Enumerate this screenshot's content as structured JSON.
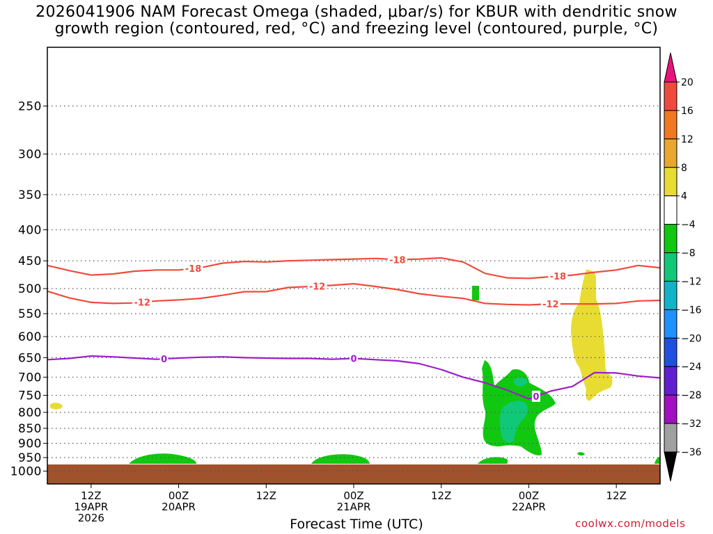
{
  "title_line1": "2026041906 NAM Forecast Omega (shaded, μbar/s) for KBUR with dendritic snow",
  "title_line2": "growth region (contoured, red, °C) and freezing level (contoured, purple, °C)",
  "credit": "coolwx.com/models",
  "chart_data": {
    "type": "area",
    "model": "NAM",
    "station": "KBUR",
    "init": "2026041906",
    "xlabel": "Forecast Time (UTC)",
    "ylabel": "",
    "y_axis": "pressure (hPa), inverted",
    "ylim": [
      1050,
      200
    ],
    "x_hours_range": [
      0,
      84
    ],
    "grid": true,
    "yticks": [
      250,
      300,
      350,
      400,
      450,
      500,
      550,
      600,
      650,
      700,
      750,
      800,
      850,
      900,
      950,
      1000
    ],
    "xticks": [
      {
        "hour": 6,
        "labels": [
          "12Z",
          "19APR",
          "2026"
        ]
      },
      {
        "hour": 18,
        "labels": [
          "00Z",
          "20APR"
        ]
      },
      {
        "hour": 30,
        "labels": [
          "12Z"
        ]
      },
      {
        "hour": 42,
        "labels": [
          "00Z",
          "21APR"
        ]
      },
      {
        "hour": 54,
        "labels": [
          "12Z"
        ]
      },
      {
        "hour": 66,
        "labels": [
          "00Z",
          "22APR"
        ]
      },
      {
        "hour": 78,
        "labels": [
          "12Z"
        ]
      }
    ],
    "colorbar": {
      "labels": [
        "20",
        "16",
        "12",
        "8",
        "4",
        "−4",
        "−8",
        "−12",
        "−16",
        "−20",
        "−24",
        "−28",
        "−32",
        "−36"
      ],
      "bins": [
        {
          "range": "above 20",
          "color": "#e8147c"
        },
        {
          "range": "16 to 20",
          "color": "#f04a3c"
        },
        {
          "range": "12 to 16",
          "color": "#f07820"
        },
        {
          "range": "8 to 12",
          "color": "#e8a830"
        },
        {
          "range": "4 to 8",
          "color": "#e8dc32"
        },
        {
          "range": "-4 to 4",
          "color": "#ffffff"
        },
        {
          "range": "-8 to -4",
          "color": "#10c810"
        },
        {
          "range": "-12 to -8",
          "color": "#10c878"
        },
        {
          "range": "-16 to -12",
          "color": "#10b4c8"
        },
        {
          "range": "-20 to -16",
          "color": "#1e90ff"
        },
        {
          "range": "-24 to -20",
          "color": "#2050e0"
        },
        {
          "range": "-28 to -24",
          "color": "#6020d0"
        },
        {
          "range": "-32 to -28",
          "color": "#a010c0"
        },
        {
          "range": "-36 to -32",
          "color": "#a0a0a0"
        },
        {
          "range": "below -36",
          "color": "#000000"
        }
      ]
    },
    "series": [
      {
        "name": "-18",
        "color": "#f04a3c",
        "x": [
          0,
          3,
          6,
          9,
          12,
          15,
          18,
          21,
          24,
          27,
          30,
          33,
          36,
          39,
          42,
          45,
          48,
          51,
          54,
          57,
          60,
          63,
          66,
          69,
          72,
          75,
          78,
          81,
          84
        ],
        "y": [
          458,
          467,
          475,
          473,
          468,
          466,
          466,
          462,
          454,
          451,
          452,
          450,
          449,
          448,
          447,
          446,
          448,
          447,
          445,
          452,
          472,
          480,
          481,
          478,
          475,
          470,
          466,
          458,
          462
        ],
        "labels": [
          {
            "x": 20,
            "text": "-18"
          },
          {
            "x": 48,
            "text": "-18"
          },
          {
            "x": 70,
            "text": "-18"
          }
        ]
      },
      {
        "name": "-12",
        "color": "#f04a3c",
        "x": [
          0,
          3,
          6,
          9,
          12,
          15,
          18,
          21,
          24,
          27,
          30,
          33,
          36,
          39,
          42,
          45,
          48,
          51,
          54,
          57,
          60,
          63,
          66,
          69,
          72,
          75,
          78,
          81,
          84
        ],
        "y": [
          505,
          518,
          527,
          529,
          528,
          524,
          522,
          519,
          513,
          506,
          506,
          498,
          496,
          494,
          491,
          496,
          502,
          510,
          515,
          519,
          529,
          531,
          532,
          530,
          530,
          530,
          529,
          524,
          523
        ],
        "labels": [
          {
            "x": 13,
            "text": "-12"
          },
          {
            "x": 37,
            "text": "-12"
          },
          {
            "x": 69,
            "text": "-12"
          }
        ]
      },
      {
        "name": "0",
        "color": "#9b1ec8",
        "x": [
          0,
          3,
          6,
          9,
          12,
          15,
          18,
          21,
          24,
          27,
          30,
          33,
          36,
          39,
          42,
          45,
          48,
          51,
          54,
          57,
          60,
          63,
          66,
          69,
          72,
          75,
          78,
          81,
          84
        ],
        "y": [
          655,
          652,
          646,
          648,
          651,
          654,
          651,
          649,
          648,
          650,
          651,
          652,
          652,
          654,
          652,
          655,
          658,
          665,
          680,
          700,
          715,
          735,
          760,
          738,
          725,
          688,
          689,
          697,
          702
        ],
        "labels": [
          {
            "x": 16,
            "text": "0"
          },
          {
            "x": 42,
            "text": "0"
          },
          {
            "x": 67,
            "text": "0"
          }
        ]
      }
    ]
  }
}
